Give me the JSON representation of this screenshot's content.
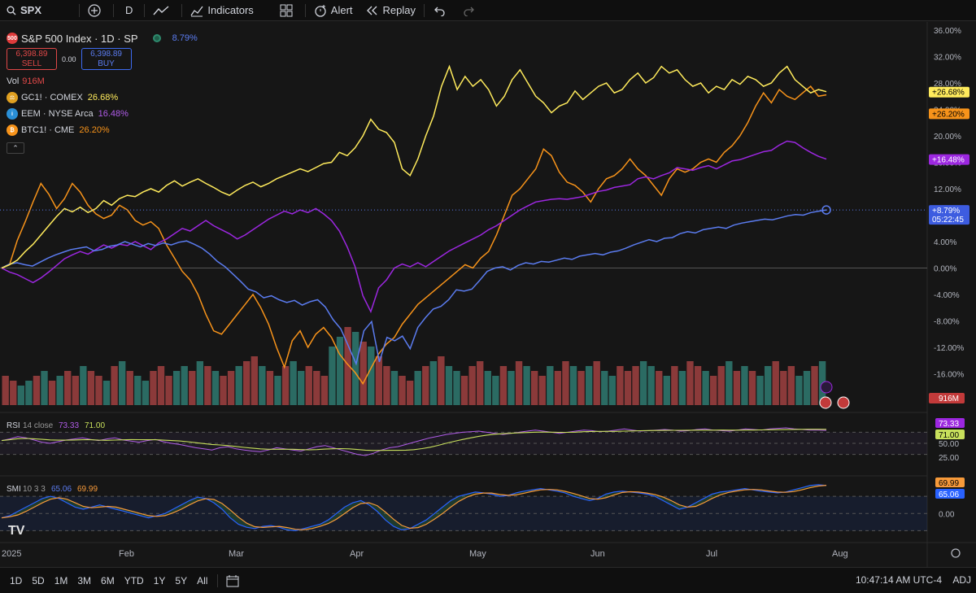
{
  "toolbar": {
    "symbol": "SPX",
    "interval": "D",
    "indicators": "Indicators",
    "alert": "Alert",
    "replay": "Replay"
  },
  "header": {
    "logo": "500",
    "title": "S&P 500 Index · 1D · SP",
    "change": "8.79%",
    "sell_price": "6,398.89",
    "sell_label": "SELL",
    "spread": "0.00",
    "buy_price": "6,398.89",
    "buy_label": "BUY",
    "vol_label": "Vol",
    "vol_value": "916M"
  },
  "legend": [
    {
      "name": "GC1! · COMEX",
      "value": "26.68%",
      "color": "#ffeb5c"
    },
    {
      "name": "EEM · NYSE Arca",
      "value": "16.48%",
      "color": "#9c27e0"
    },
    {
      "name": "BTC1! · CME",
      "value": "26.20%",
      "color": "#f7931a"
    }
  ],
  "last_labels": {
    "gold": "+26.68%",
    "btc": "+26.20%",
    "eem": "+16.48%",
    "spx": "+8.79%",
    "countdown": "05:22:45",
    "vol": "916M"
  },
  "rsi": {
    "label": "RSI",
    "params": "14 close",
    "v1": "73.33",
    "v2": "71.00",
    "tick_50": "50.00",
    "tick_25": "25.00"
  },
  "smi": {
    "label": "SMI",
    "params": "10 3 3",
    "v1": "65.06",
    "v2": "69.99",
    "tick_0": "0.00"
  },
  "time_labels": [
    "2025",
    "Feb",
    "Mar",
    "Apr",
    "May",
    "Jun",
    "Jul",
    "Aug"
  ],
  "ranges": [
    "1D",
    "5D",
    "1M",
    "3M",
    "6M",
    "YTD",
    "1Y",
    "5Y",
    "All"
  ],
  "clock": "10:47:14 AM UTC-4",
  "adj": "ADJ",
  "colors": {
    "spx": "#5b7cf0",
    "gold": "#ffeb5c",
    "eem": "#9c27e0",
    "btc": "#f7931a",
    "up": "#2b6b63",
    "down": "#8b3a3a"
  },
  "chart_data": {
    "type": "line",
    "y_unit": "%",
    "ylim": [
      -20,
      36
    ],
    "y_ticks": [
      "36.00%",
      "32.00%",
      "28.00%",
      "24.00%",
      "20.00%",
      "16.00%",
      "12.00%",
      "8.00%",
      "4.00%",
      "0.00%",
      "-4.00%",
      "-8.00%",
      "-12.00%",
      "-16.00%",
      "-20.00%"
    ],
    "series": [
      {
        "name": "S&P 500 Index",
        "key": "spx",
        "values": [
          0,
          0.6,
          0.8,
          0.5,
          0.3,
          0.9,
          1.5,
          2.0,
          2.4,
          2.8,
          3.0,
          3.2,
          2.6,
          2.8,
          3.3,
          3.5,
          4.0,
          3.6,
          3.2,
          3.7,
          3.4,
          3.8,
          3.5,
          3.9,
          4.1,
          3.6,
          3.0,
          2.1,
          1.0,
          0.2,
          -0.9,
          -2.0,
          -3.2,
          -3.6,
          -4.5,
          -4.2,
          -4.8,
          -5.2,
          -4.9,
          -5.6,
          -5.1,
          -4.8,
          -5.9,
          -7.8,
          -9.2,
          -11.8,
          -14.5,
          -9.5,
          -8.1,
          -14.2,
          -10.5,
          -11.0,
          -10.3,
          -12.2,
          -9.0,
          -7.5,
          -6.2,
          -5.8,
          -4.8,
          -3.3,
          -3.5,
          -3.2,
          -1.9,
          -0.5,
          0,
          0.2,
          -0.3,
          0.4,
          0.8,
          0.6,
          1.0,
          0.9,
          1.2,
          1.5,
          1.3,
          1.8,
          2.0,
          2.2,
          2.0,
          2.4,
          2.6,
          3.0,
          3.5,
          3.9,
          4.3,
          4.0,
          4.5,
          4.6,
          5.2,
          5.5,
          5.3,
          5.8,
          6.0,
          6.2,
          6.0,
          6.5,
          6.8,
          7.0,
          7.2,
          7.4,
          7.3,
          7.6,
          7.9,
          8.1,
          8.0,
          8.4,
          8.6,
          8.79
        ]
      },
      {
        "name": "GC1! · COMEX",
        "key": "gold",
        "values": [
          0,
          0.5,
          1.2,
          2.5,
          3.6,
          5.0,
          6.4,
          7.8,
          9.0,
          8.5,
          9.2,
          8.4,
          9.0,
          10.2,
          9.5,
          10.5,
          11.0,
          10.8,
          11.5,
          12.0,
          11.5,
          12.5,
          13.2,
          12.4,
          13.0,
          13.5,
          12.8,
          12.2,
          11.5,
          11.0,
          11.8,
          12.5,
          13.0,
          12.3,
          12.8,
          13.5,
          14.0,
          14.5,
          15.0,
          14.6,
          15.2,
          15.8,
          16.0,
          17.5,
          17.0,
          18.2,
          20.0,
          22.5,
          21.0,
          20.5,
          19.0,
          15.0,
          14.0,
          16.5,
          20.0,
          23.0,
          27.5,
          30.5,
          27.0,
          29.0,
          27.5,
          28.5,
          27.0,
          24.5,
          26.0,
          28.5,
          30.0,
          28.0,
          26.0,
          25.0,
          23.5,
          24.5,
          25.0,
          26.8,
          25.5,
          26.5,
          27.5,
          28.0,
          26.5,
          27.0,
          28.5,
          29.5,
          28.0,
          28.8,
          30.5,
          29.5,
          30.0,
          28.5,
          27.5,
          28.0,
          26.5,
          27.5,
          27.0,
          28.5,
          27.8,
          29.0,
          28.5,
          27.5,
          28.0,
          29.5,
          30.5,
          28.5,
          27.5,
          26.5,
          27.0,
          26.68
        ]
      },
      {
        "name": "EEM · NYSE Arca",
        "key": "eem",
        "values": [
          0,
          -0.6,
          -1.0,
          -1.6,
          -2.2,
          -1.5,
          -0.6,
          0.4,
          1.4,
          2.0,
          2.5,
          2.1,
          2.8,
          3.5,
          3.0,
          3.6,
          3.4,
          4.0,
          3.4,
          2.8,
          3.8,
          4.4,
          5.2,
          6.0,
          5.6,
          6.4,
          7.2,
          6.4,
          5.8,
          5.2,
          4.4,
          5.0,
          5.8,
          6.6,
          7.4,
          8.0,
          8.6,
          8.2,
          8.8,
          8.4,
          9.0,
          8.2,
          7.2,
          5.6,
          3.2,
          0.2,
          -4.2,
          -6.6,
          -3.0,
          -1.8,
          0.0,
          0.6,
          0.2,
          0.8,
          0.2,
          1.0,
          1.8,
          2.6,
          3.2,
          3.8,
          4.4,
          5.0,
          5.8,
          6.4,
          7.2,
          8.0,
          8.8,
          9.4,
          10.0,
          10.2,
          10.4,
          10.5,
          10.4,
          10.6,
          10.8,
          11.2,
          11.6,
          11.8,
          12.2,
          12.4,
          12.6,
          13.5,
          13.8,
          13.5,
          14.0,
          14.4,
          15.2,
          15.0,
          14.8,
          15.2,
          15.5,
          15.0,
          15.6,
          16.2,
          16.4,
          16.8,
          17.2,
          17.6,
          17.8,
          18.6,
          19.2,
          19.0,
          18.2,
          17.5,
          16.9,
          16.48
        ]
      },
      {
        "name": "BTC1! · CME",
        "key": "btc",
        "values": [
          0,
          0.5,
          4.2,
          7.0,
          10.0,
          12.8,
          11.2,
          9.0,
          10.5,
          12.8,
          11.5,
          9.5,
          8.2,
          7.5,
          8.0,
          9.5,
          8.8,
          7.2,
          6.5,
          7.0,
          6.0,
          3.5,
          1.5,
          -0.5,
          -1.8,
          -4.0,
          -7.0,
          -9.5,
          -10.0,
          -8.5,
          -7.0,
          -5.5,
          -4.0,
          -6.0,
          -8.5,
          -12.0,
          -15.0,
          -11.0,
          -9.5,
          -12.0,
          -10.0,
          -9.0,
          -10.5,
          -13.0,
          -14.5,
          -15.8,
          -17.5,
          -15.2,
          -13.0,
          -11.5,
          -10.5,
          -8.5,
          -7.0,
          -5.5,
          -4.5,
          -3.5,
          -2.5,
          -1.5,
          -0.5,
          0.5,
          0.0,
          1.5,
          2.5,
          5.0,
          8.0,
          11.0,
          12.0,
          13.5,
          15.0,
          18.0,
          17.0,
          14.5,
          13.0,
          12.5,
          11.5,
          10.0,
          12.0,
          13.5,
          14.0,
          15.0,
          16.5,
          15.0,
          14.0,
          12.5,
          11.0,
          13.5,
          15.0,
          14.5,
          15.0,
          16.0,
          16.5,
          16.0,
          17.5,
          18.5,
          20.0,
          22.0,
          24.5,
          26.5,
          25.0,
          27.0,
          26.0,
          25.5,
          26.5,
          27.5,
          26.0,
          26.2
        ]
      }
    ],
    "volume": [
      16,
      15,
      14,
      15,
      16,
      17,
      15,
      16,
      17,
      16,
      18,
      17,
      16,
      15,
      18,
      19,
      17,
      16,
      15,
      17,
      18,
      16,
      17,
      18,
      17,
      19,
      18,
      17,
      16,
      17,
      18,
      19,
      20,
      18,
      17,
      16,
      18,
      19,
      17,
      18,
      17,
      16,
      22,
      24,
      26,
      25,
      23,
      22,
      20,
      18,
      17,
      16,
      15,
      17,
      18,
      19,
      20,
      18,
      17,
      16,
      18,
      19,
      17,
      16,
      18,
      17,
      19,
      18,
      17,
      16,
      18,
      17,
      19,
      18,
      17,
      18,
      19,
      17,
      16,
      18,
      17,
      18,
      19,
      18,
      17,
      16,
      18,
      17,
      19,
      18,
      17,
      16,
      18,
      19,
      17,
      18,
      17,
      16,
      18,
      19,
      17,
      18,
      16,
      17,
      18,
      19
    ],
    "rsi_values": [
      55,
      58,
      62,
      60,
      56,
      52,
      50,
      53,
      56,
      58,
      60,
      57,
      55,
      58,
      60,
      56,
      54,
      52,
      55,
      57,
      53,
      50,
      48,
      45,
      42,
      40,
      38,
      42,
      44,
      40,
      38,
      36,
      35,
      38,
      42,
      40,
      38,
      36,
      40,
      44,
      46,
      42,
      38,
      34,
      30,
      28,
      32,
      38,
      42,
      44,
      48,
      52,
      56,
      60,
      63,
      66,
      68,
      70,
      71,
      72,
      70,
      68,
      66,
      68,
      70,
      72,
      74,
      72,
      70,
      68,
      70,
      72,
      74,
      73,
      71,
      72,
      74,
      76,
      74,
      72,
      73,
      74,
      75,
      74,
      72,
      73,
      75,
      76,
      74,
      73,
      72,
      74,
      76,
      75,
      74,
      76,
      77,
      78,
      76,
      75,
      74,
      74,
      73.33
    ],
    "smi_values": [
      -10,
      -5,
      5,
      15,
      25,
      35,
      40,
      35,
      25,
      15,
      10,
      15,
      20,
      15,
      10,
      5,
      0,
      -5,
      -10,
      -5,
      0,
      10,
      20,
      30,
      38,
      35,
      25,
      10,
      -10,
      -25,
      -32,
      -35,
      -30,
      -28,
      -32,
      -38,
      -40,
      -35,
      -30,
      -25,
      -15,
      0,
      15,
      25,
      30,
      20,
      5,
      -15,
      -30,
      -38,
      -35,
      -25,
      -15,
      0,
      15,
      30,
      40,
      45,
      50,
      48,
      45,
      40,
      42,
      48,
      52,
      55,
      58,
      55,
      52,
      48,
      40,
      35,
      30,
      35,
      45,
      50,
      52,
      50,
      48,
      45,
      40,
      30,
      20,
      10,
      15,
      25,
      35,
      45,
      50,
      52,
      55,
      58,
      55,
      52,
      50,
      48,
      50,
      55,
      60,
      65,
      67,
      65.06
    ]
  }
}
